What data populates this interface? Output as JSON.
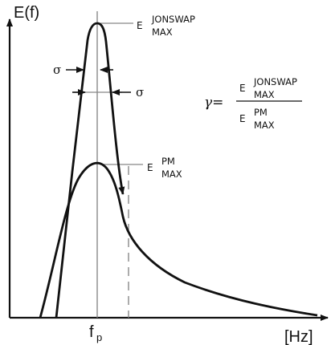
{
  "axes": {
    "y_label": "E(f)",
    "x_unit": "[Hz]",
    "peak_frequency": {
      "base": "f",
      "sub": "p"
    }
  },
  "jonswap_max": {
    "prefix": "E",
    "sup": "JONSWAP",
    "sub": "MAX"
  },
  "pm_max": {
    "prefix": "E",
    "sup": "PM",
    "sub": "MAX"
  },
  "sigma_left": "σ",
  "sigma_right": "σ",
  "gamma_formula": {
    "lhs": "γ=",
    "numerator": {
      "prefix": "E",
      "sup": "JONSWAP",
      "sub": "MAX"
    },
    "denominator": {
      "prefix": "E",
      "sup": "PM",
      "sub": "MAX"
    }
  },
  "colors": {
    "ink": "#111111",
    "guide": "#888888",
    "background": "#ffffff"
  }
}
